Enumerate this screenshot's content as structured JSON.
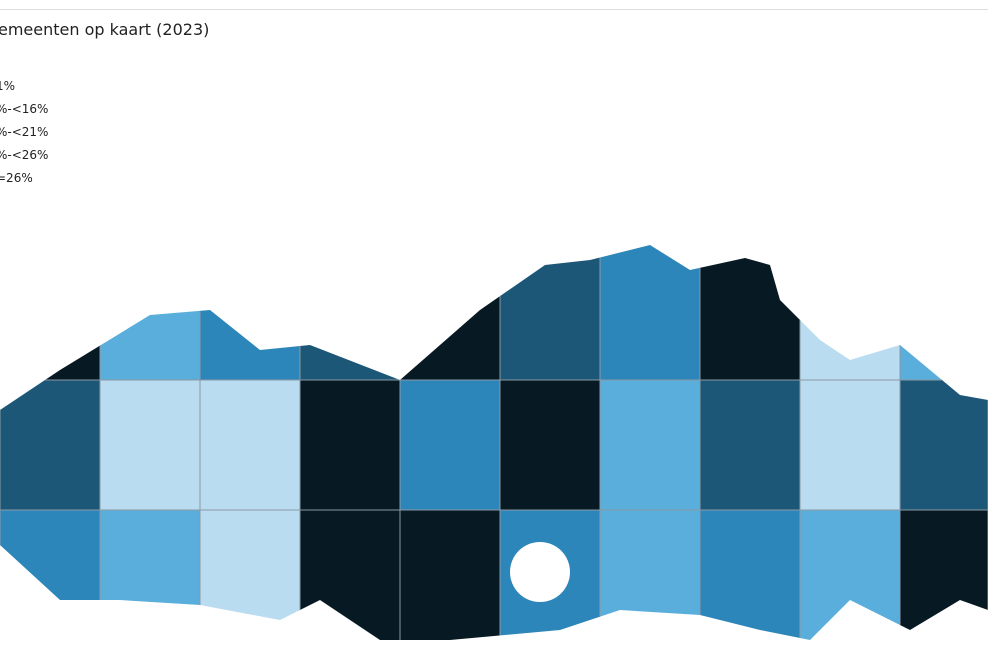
{
  "header": {
    "title": "emeenten op kaart (2023)"
  },
  "legend": {
    "items": [
      "1%",
      "%-<16%",
      "%-<21%",
      "%-<26%",
      "=26%"
    ]
  }
}
